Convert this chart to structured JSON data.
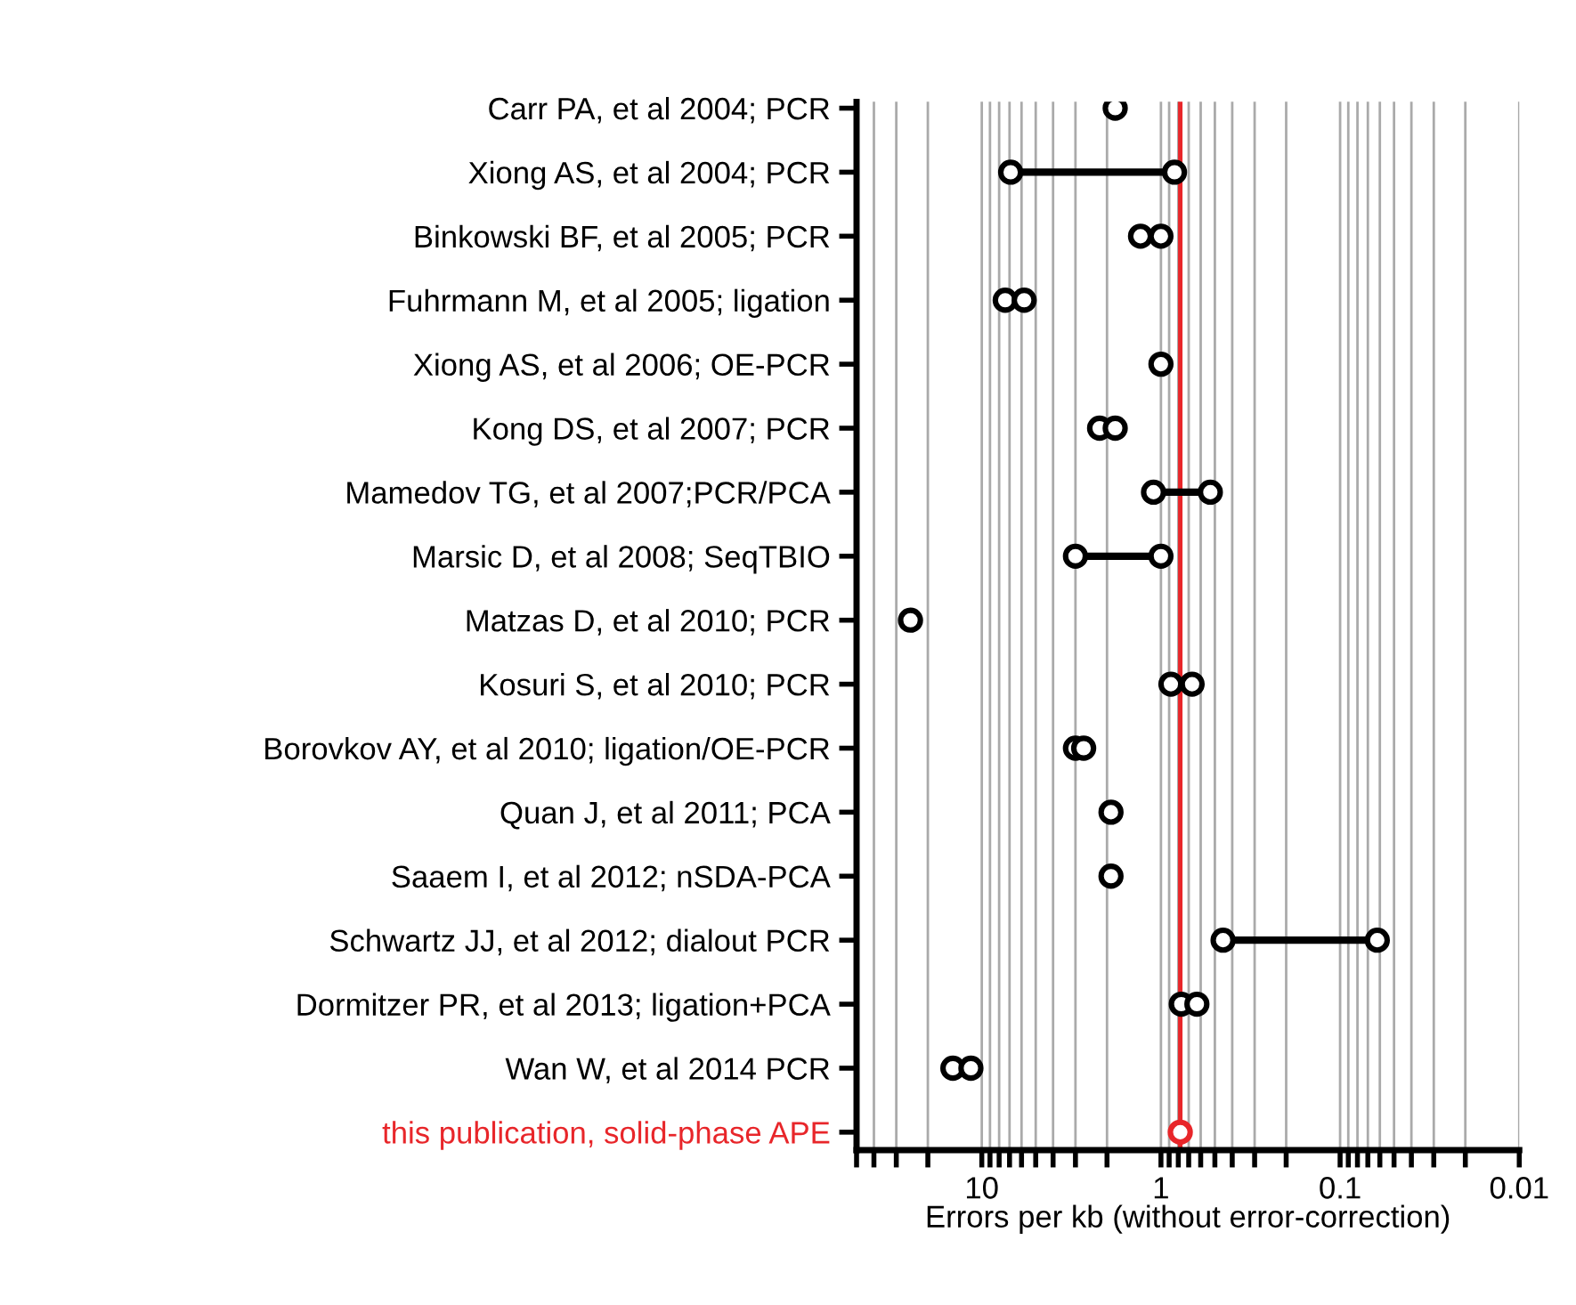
{
  "chart_data": {
    "type": "scatter",
    "orientation": "horizontal",
    "log": "x",
    "xlabel": "Errors per kb (without error-correction)",
    "categories": [
      "Carr PA, et al 2004; PCR",
      "Xiong AS, et al 2004; PCR",
      "Binkowski BF, et al 2005; PCR",
      "Fuhrmann M, et al 2005; ligation",
      "Xiong AS, et al 2006; OE-PCR",
      "Kong DS, et al 2007; PCR",
      "Mamedov TG, et al 2007;PCR/PCA",
      "Marsic D, et al 2008; SeqTBIO",
      "Matzas D, et al 2010; PCR",
      "Kosuri S, et al 2010; PCR",
      "Borovkov AY, et al 2010; ligation/OE-PCR",
      "Quan J, et al 2011; PCA",
      "Saaem I, et al 2012; nSDA-PCA",
      "Schwartz JJ, et al 2012; dialout PCR",
      "Dormitzer PR, et al 2013; ligation+PCA",
      "Wan W, et al 2014 PCR",
      "this publication, solid-phase APE"
    ],
    "series": [
      {
        "color": "#000000",
        "colors": [
          "#000000",
          "#000000",
          "#000000",
          "#000000",
          "#000000",
          "#000000",
          "#000000",
          "#000000",
          "#000000",
          "#000000",
          "#000000",
          "#000000",
          "#000000",
          "#000000",
          "#000000",
          "#000000",
          "#e8262a"
        ],
        "values": [
          1.8,
          6.9,
          1.3,
          7.4,
          1.0,
          2.2,
          1.1,
          3.0,
          25,
          0.88,
          3.0,
          1.9,
          1.9,
          0.45,
          0.77,
          14.5,
          0.78
        ]
      },
      {
        "color": "#000000",
        "values": [
          null,
          0.84,
          1.0,
          5.8,
          null,
          1.8,
          0.53,
          1.0,
          null,
          0.67,
          2.7,
          null,
          null,
          0.062,
          0.63,
          11.5,
          null
        ]
      }
    ],
    "xlim": [
      50,
      0.01
    ],
    "xticks": [
      {
        "value": 50,
        "label": null
      },
      {
        "value": 40,
        "label": null
      },
      {
        "value": 30,
        "label": null
      },
      {
        "value": 20,
        "label": null
      },
      10,
      {
        "value": 9,
        "label": null
      },
      {
        "value": 8,
        "label": null
      },
      {
        "value": 7,
        "label": null
      },
      {
        "value": 6,
        "label": null
      },
      {
        "value": 5,
        "label": null
      },
      {
        "value": 4,
        "label": null
      },
      {
        "value": 3,
        "label": null
      },
      {
        "value": 2,
        "label": null
      },
      1,
      {
        "value": 0.9,
        "label": null
      },
      {
        "value": 0.8,
        "label": null
      },
      {
        "value": 0.7,
        "label": null
      },
      {
        "value": 0.6,
        "label": null
      },
      {
        "value": 0.5,
        "label": null
      },
      {
        "value": 0.4,
        "label": null
      },
      {
        "value": 0.3,
        "label": null
      },
      {
        "value": 0.2,
        "label": null
      },
      0.1,
      {
        "value": 0.09,
        "label": null
      },
      {
        "value": 0.08,
        "label": null
      },
      {
        "value": 0.07,
        "label": null
      },
      {
        "value": 0.06,
        "label": null
      },
      {
        "value": 0.05,
        "label": null
      },
      {
        "value": 0.04,
        "label": null
      },
      {
        "value": 0.03,
        "label": null
      },
      {
        "value": 0.02,
        "label": null
      },
      0.01
    ],
    "grid": "x",
    "marker": "circle",
    "ref_lines": [
      {
        "axis": "x",
        "value": 0.78,
        "color": "#e8262a"
      }
    ]
  }
}
